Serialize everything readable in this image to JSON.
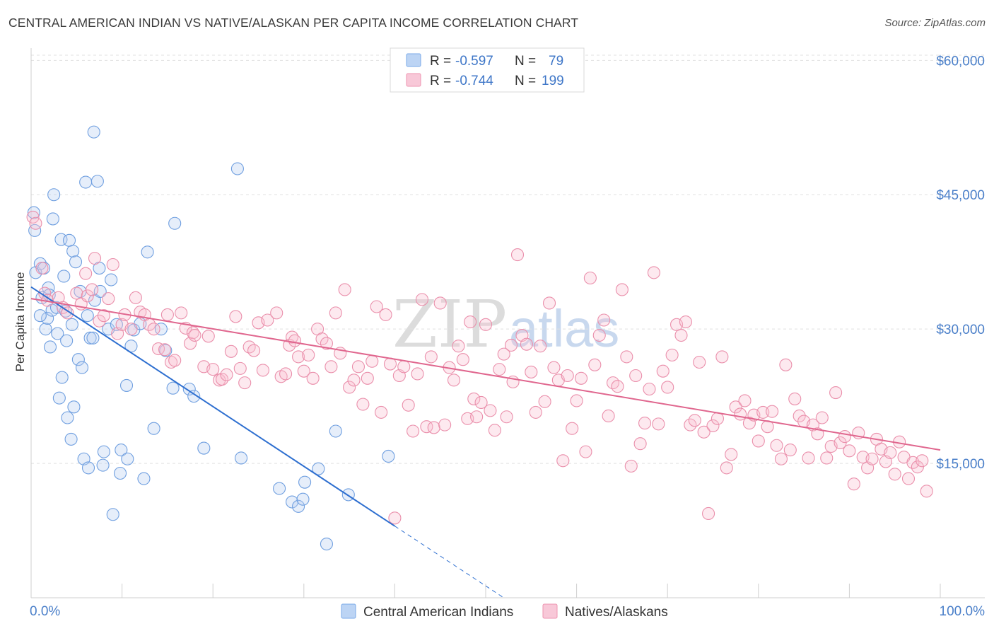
{
  "title": "CENTRAL AMERICAN INDIAN VS NATIVE/ALASKAN PER CAPITA INCOME CORRELATION CHART",
  "source": "Source: ZipAtlas.com",
  "watermark": {
    "zip": "ZIP",
    "atlas": "atlas"
  },
  "chart_data": {
    "type": "scatter",
    "title": "CENTRAL AMERICAN INDIAN VS NATIVE/ALASKAN PER CAPITA INCOME CORRELATION CHART",
    "xlabel": "",
    "ylabel": "Per Capita Income",
    "xlim": [
      0,
      100
    ],
    "ylim": [
      0,
      62000
    ],
    "x_tick_labels": [
      "0.0%",
      "100.0%"
    ],
    "y_ticks": [
      15000,
      30000,
      45000,
      60000
    ],
    "y_tick_labels": [
      "$15,000",
      "$30,000",
      "$45,000",
      "$60,000"
    ],
    "legend_stats": [
      {
        "r_label": "R =",
        "r": "-0.597",
        "n_label": "N =",
        "n": "79",
        "color": "#7aaae8",
        "fill": "#bcd4f4"
      },
      {
        "r_label": "R =",
        "r": "-0.744",
        "n_label": "N =",
        "n": "199",
        "color": "#ee94b0",
        "fill": "#f8c8d8"
      }
    ],
    "series": [
      {
        "name": "Central American Indians",
        "color": "#6f9fe0",
        "trend": {
          "x0": 0,
          "y0": 34700,
          "x1": 40,
          "y1": 8000,
          "dash_to_x": 100
        },
        "points": [
          [
            0.3,
            43000
          ],
          [
            0.4,
            41000
          ],
          [
            0.5,
            36300
          ],
          [
            1.0,
            37300
          ],
          [
            1.2,
            33500
          ],
          [
            1.4,
            36800
          ],
          [
            1.6,
            30000
          ],
          [
            1.8,
            31200
          ],
          [
            1.9,
            34600
          ],
          [
            2.1,
            28000
          ],
          [
            2.3,
            32100
          ],
          [
            2.4,
            42300
          ],
          [
            2.5,
            45000
          ],
          [
            2.8,
            32400
          ],
          [
            2.9,
            29500
          ],
          [
            3.1,
            22300
          ],
          [
            3.3,
            40000
          ],
          [
            3.4,
            24600
          ],
          [
            3.6,
            35900
          ],
          [
            3.8,
            32000
          ],
          [
            3.9,
            28700
          ],
          [
            4.0,
            20100
          ],
          [
            4.2,
            39900
          ],
          [
            4.4,
            17700
          ],
          [
            4.6,
            38700
          ],
          [
            4.7,
            21300
          ],
          [
            4.9,
            37500
          ],
          [
            5.2,
            26600
          ],
          [
            5.4,
            34200
          ],
          [
            5.6,
            25700
          ],
          [
            5.8,
            15500
          ],
          [
            6.0,
            46400
          ],
          [
            6.2,
            31500
          ],
          [
            6.3,
            14500
          ],
          [
            6.5,
            29000
          ],
          [
            6.9,
            52000
          ],
          [
            7.0,
            33200
          ],
          [
            7.3,
            46500
          ],
          [
            7.5,
            36800
          ],
          [
            7.6,
            34200
          ],
          [
            7.9,
            14800
          ],
          [
            8.0,
            16300
          ],
          [
            8.5,
            30000
          ],
          [
            9.0,
            9300
          ],
          [
            9.4,
            30500
          ],
          [
            9.8,
            13900
          ],
          [
            9.9,
            16500
          ],
          [
            10.5,
            23700
          ],
          [
            10.6,
            15500
          ],
          [
            11.0,
            28100
          ],
          [
            11.3,
            29900
          ],
          [
            12.4,
            13300
          ],
          [
            12.8,
            38600
          ],
          [
            13.5,
            18900
          ],
          [
            14.3,
            30000
          ],
          [
            14.8,
            27600
          ],
          [
            15.6,
            23400
          ],
          [
            15.8,
            41800
          ],
          [
            17.4,
            23300
          ],
          [
            17.9,
            22500
          ],
          [
            19.0,
            16700
          ],
          [
            22.7,
            47900
          ],
          [
            23.1,
            15600
          ],
          [
            27.3,
            12200
          ],
          [
            28.7,
            10700
          ],
          [
            29.4,
            10200
          ],
          [
            29.9,
            11000
          ],
          [
            30.1,
            12900
          ],
          [
            31.6,
            14400
          ],
          [
            32.5,
            6000
          ],
          [
            33.5,
            18600
          ],
          [
            34.9,
            11500
          ],
          [
            39.3,
            15800
          ],
          [
            1.0,
            31500
          ],
          [
            2.0,
            33800
          ],
          [
            4.5,
            30500
          ],
          [
            6.8,
            29000
          ],
          [
            8.8,
            35500
          ],
          [
            12.0,
            30600
          ]
        ]
      },
      {
        "name": "Natives/Alaskans",
        "color": "#ea8fab",
        "trend": {
          "x0": 0,
          "y0": 33400,
          "x1": 100,
          "y1": 16500
        },
        "points": [
          [
            0.2,
            42500
          ],
          [
            0.5,
            41800
          ],
          [
            1.2,
            36800
          ],
          [
            1.5,
            34000
          ],
          [
            1.8,
            33200
          ],
          [
            3.0,
            33500
          ],
          [
            3.5,
            32400
          ],
          [
            4.0,
            31800
          ],
          [
            5.0,
            34000
          ],
          [
            5.5,
            32800
          ],
          [
            6.0,
            36200
          ],
          [
            6.2,
            33700
          ],
          [
            6.7,
            34400
          ],
          [
            7.0,
            37900
          ],
          [
            7.5,
            30900
          ],
          [
            8.0,
            31500
          ],
          [
            8.5,
            33400
          ],
          [
            9.0,
            37200
          ],
          [
            9.5,
            29500
          ],
          [
            10.0,
            30500
          ],
          [
            10.3,
            31600
          ],
          [
            11.0,
            30000
          ],
          [
            11.5,
            33500
          ],
          [
            12.0,
            31900
          ],
          [
            12.5,
            31600
          ],
          [
            13.0,
            30500
          ],
          [
            13.5,
            30000
          ],
          [
            14.0,
            27800
          ],
          [
            14.7,
            27700
          ],
          [
            15.0,
            31600
          ],
          [
            15.4,
            26300
          ],
          [
            15.8,
            26500
          ],
          [
            16.5,
            31800
          ],
          [
            17.0,
            30100
          ],
          [
            17.5,
            28400
          ],
          [
            17.8,
            29600
          ],
          [
            18.0,
            29300
          ],
          [
            19.0,
            25800
          ],
          [
            19.5,
            29200
          ],
          [
            20.0,
            25500
          ],
          [
            20.7,
            24300
          ],
          [
            21.0,
            24400
          ],
          [
            21.5,
            24900
          ],
          [
            22.0,
            27500
          ],
          [
            22.5,
            31400
          ],
          [
            23.0,
            25600
          ],
          [
            23.5,
            24000
          ],
          [
            24.0,
            28000
          ],
          [
            24.5,
            27600
          ],
          [
            25.0,
            30700
          ],
          [
            25.5,
            25400
          ],
          [
            26.0,
            31000
          ],
          [
            27.0,
            31800
          ],
          [
            27.5,
            24700
          ],
          [
            28.0,
            25000
          ],
          [
            28.4,
            28200
          ],
          [
            28.7,
            29100
          ],
          [
            29.0,
            28700
          ],
          [
            29.4,
            26900
          ],
          [
            30.0,
            25300
          ],
          [
            30.5,
            27100
          ],
          [
            31.0,
            24500
          ],
          [
            31.5,
            30000
          ],
          [
            32.0,
            28900
          ],
          [
            32.5,
            28400
          ],
          [
            33.0,
            25800
          ],
          [
            33.5,
            31800
          ],
          [
            34.0,
            27300
          ],
          [
            34.5,
            34400
          ],
          [
            35.0,
            23500
          ],
          [
            35.5,
            24300
          ],
          [
            36.0,
            25800
          ],
          [
            36.5,
            21600
          ],
          [
            37.0,
            24500
          ],
          [
            37.5,
            26400
          ],
          [
            38.0,
            32500
          ],
          [
            38.5,
            20700
          ],
          [
            39.0,
            31600
          ],
          [
            39.5,
            26100
          ],
          [
            40.0,
            8900
          ],
          [
            40.5,
            24800
          ],
          [
            41.0,
            25800
          ],
          [
            41.5,
            21500
          ],
          [
            42.0,
            18600
          ],
          [
            42.5,
            25000
          ],
          [
            43.0,
            33300
          ],
          [
            43.5,
            19100
          ],
          [
            44.0,
            26900
          ],
          [
            44.3,
            19000
          ],
          [
            45.0,
            32900
          ],
          [
            45.5,
            19300
          ],
          [
            46.0,
            25700
          ],
          [
            46.5,
            24300
          ],
          [
            47.0,
            28100
          ],
          [
            47.5,
            26600
          ],
          [
            48.0,
            20000
          ],
          [
            48.3,
            30800
          ],
          [
            48.7,
            22200
          ],
          [
            49.0,
            20200
          ],
          [
            49.5,
            21800
          ],
          [
            50.0,
            30500
          ],
          [
            50.5,
            20900
          ],
          [
            51.0,
            18700
          ],
          [
            51.5,
            25500
          ],
          [
            52.0,
            27200
          ],
          [
            52.3,
            20200
          ],
          [
            52.8,
            28200
          ],
          [
            53.0,
            24100
          ],
          [
            53.5,
            38300
          ],
          [
            54.0,
            29300
          ],
          [
            54.5,
            28300
          ],
          [
            55.0,
            25200
          ],
          [
            55.5,
            20700
          ],
          [
            56.0,
            28100
          ],
          [
            56.5,
            21900
          ],
          [
            57.0,
            32900
          ],
          [
            57.5,
            25700
          ],
          [
            58.0,
            24300
          ],
          [
            58.5,
            15300
          ],
          [
            59.0,
            24800
          ],
          [
            59.5,
            18900
          ],
          [
            60.0,
            22000
          ],
          [
            60.5,
            24500
          ],
          [
            61.0,
            16300
          ],
          [
            61.5,
            35700
          ],
          [
            62.0,
            26000
          ],
          [
            62.5,
            29300
          ],
          [
            63.0,
            31000
          ],
          [
            63.5,
            20300
          ],
          [
            64.0,
            24000
          ],
          [
            64.5,
            23600
          ],
          [
            65.0,
            34400
          ],
          [
            65.5,
            26900
          ],
          [
            66.0,
            14700
          ],
          [
            66.5,
            24800
          ],
          [
            67.0,
            17200
          ],
          [
            67.5,
            19500
          ],
          [
            68.0,
            23300
          ],
          [
            68.5,
            36300
          ],
          [
            69.0,
            19400
          ],
          [
            69.5,
            25300
          ],
          [
            70.0,
            23500
          ],
          [
            70.5,
            27100
          ],
          [
            71.0,
            30500
          ],
          [
            71.5,
            29300
          ],
          [
            72.0,
            30800
          ],
          [
            72.5,
            19300
          ],
          [
            73.0,
            19800
          ],
          [
            73.5,
            26300
          ],
          [
            74.0,
            18500
          ],
          [
            74.5,
            9400
          ],
          [
            75.0,
            19200
          ],
          [
            75.5,
            20000
          ],
          [
            76.0,
            26900
          ],
          [
            76.5,
            14500
          ],
          [
            77.0,
            16000
          ],
          [
            77.5,
            21300
          ],
          [
            78.0,
            20500
          ],
          [
            78.5,
            22000
          ],
          [
            79.0,
            19500
          ],
          [
            79.5,
            20400
          ],
          [
            80.0,
            17500
          ],
          [
            80.5,
            20700
          ],
          [
            81.0,
            19100
          ],
          [
            81.5,
            20800
          ],
          [
            82.0,
            17000
          ],
          [
            82.5,
            15500
          ],
          [
            83.0,
            26000
          ],
          [
            83.5,
            16500
          ],
          [
            84.0,
            22200
          ],
          [
            84.5,
            20300
          ],
          [
            85.0,
            19700
          ],
          [
            85.5,
            15600
          ],
          [
            86.0,
            19300
          ],
          [
            86.5,
            18300
          ],
          [
            87.0,
            20100
          ],
          [
            87.5,
            15600
          ],
          [
            88.0,
            16900
          ],
          [
            88.5,
            22900
          ],
          [
            89.0,
            17300
          ],
          [
            89.5,
            18000
          ],
          [
            90.0,
            16400
          ],
          [
            90.5,
            12700
          ],
          [
            91.0,
            18400
          ],
          [
            91.5,
            15700
          ],
          [
            92.0,
            14500
          ],
          [
            92.5,
            15500
          ],
          [
            93.0,
            17700
          ],
          [
            93.5,
            16600
          ],
          [
            94.0,
            15200
          ],
          [
            94.5,
            16200
          ],
          [
            95.0,
            13800
          ],
          [
            95.5,
            17400
          ],
          [
            96.0,
            15700
          ],
          [
            96.5,
            13300
          ],
          [
            97.0,
            15100
          ],
          [
            97.5,
            14600
          ],
          [
            98.0,
            15300
          ],
          [
            98.5,
            11900
          ]
        ]
      }
    ]
  }
}
